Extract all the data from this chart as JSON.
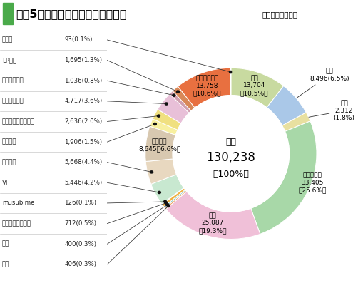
{
  "title": "令和5年度取扱高実績および構成比",
  "subtitle": "（単位：百万円）",
  "segments": [
    {
      "label": "米穀",
      "value": 13704,
      "pct": "10.5%",
      "color": "#c8daa0"
    },
    {
      "label": "農産",
      "value": 8496,
      "pct": "6.5%",
      "color": "#aac8e8"
    },
    {
      "label": "特産",
      "value": 2312,
      "pct": "1.8%",
      "color": "#e8e0a0"
    },
    {
      "label": "野菜・花き",
      "value": 33405,
      "pct": "25.6%",
      "color": "#a8d8a8"
    },
    {
      "label": "果実",
      "value": 25087,
      "pct": "19.3%",
      "color": "#f0c0d8"
    },
    {
      "label": "種苗",
      "value": 406,
      "pct": "0.3%",
      "color": "#f0a060"
    },
    {
      "label": "物流",
      "value": 400,
      "pct": "0.3%",
      "color": "#80c8c8"
    },
    {
      "label": "フードマーケット",
      "value": 712,
      "pct": "0.5%",
      "color": "#f0b040"
    },
    {
      "label": "musubime",
      "value": 126,
      "pct": "0.1%",
      "color": "#c8b090"
    },
    {
      "label": "VF",
      "value": 5446,
      "pct": "4.2%",
      "color": "#c8e8d0"
    },
    {
      "label": "販売資材",
      "value": 5668,
      "pct": "4.4%",
      "color": "#e8d8c0"
    },
    {
      "label": "生産資材",
      "value": 8645,
      "pct": "6.6%",
      "color": "#d8c8b0"
    },
    {
      "label": "農業機械",
      "value": 1906,
      "pct": "1.5%",
      "color": "#f8f0a0"
    },
    {
      "label": "筑後北部・南部広域",
      "value": 2636,
      "pct": "2.0%",
      "color": "#f0e080"
    },
    {
      "label": "施設広域品目",
      "value": 4717,
      "pct": "3.6%",
      "color": "#e8c0d8"
    },
    {
      "label": "生活広域品目",
      "value": 1036,
      "pct": "0.8%",
      "color": "#d0a0b0"
    },
    {
      "label": "LPガス",
      "value": 1695,
      "pct": "1.3%",
      "color": "#d88858"
    },
    {
      "label": "石油広域品目",
      "value": 13758,
      "pct": "10.6%",
      "color": "#e87040"
    },
    {
      "label": "印刷物",
      "value": 93,
      "pct": "0.1%",
      "color": "#b0b0c0"
    }
  ],
  "left_labels": [
    {
      "name": "印刷物",
      "value": "93(0.1%)",
      "seg_idx": 18
    },
    {
      "name": "LPガス",
      "value": "1,695(1.3%)",
      "seg_idx": 16
    },
    {
      "name": "生活広域品目",
      "value": "1,036(0.8%)",
      "seg_idx": 15
    },
    {
      "name": "施設広域品目",
      "value": "4,717(3.6%)",
      "seg_idx": 14
    },
    {
      "name": "筑後北部・南部広域",
      "value": "2,636(2.0%)",
      "seg_idx": 13
    },
    {
      "name": "農業機械",
      "value": "1,906(1.5%)",
      "seg_idx": 12
    },
    {
      "name": "販売資材",
      "value": "5,668(4.4%)",
      "seg_idx": 10
    },
    {
      "name": "VF",
      "value": "5,446(4.2%)",
      "seg_idx": 9
    },
    {
      "name": "musubime",
      "value": "126(0.1%)",
      "seg_idx": 8
    },
    {
      "name": "フードマーケット",
      "value": "712(0.5%)",
      "seg_idx": 7
    },
    {
      "name": "物流",
      "value": "400(0.3%)",
      "seg_idx": 6
    },
    {
      "name": "種苗",
      "value": "406(0.3%)",
      "seg_idx": 5
    }
  ],
  "bg_color": "#ffffff",
  "title_green": "#4aaa4a"
}
